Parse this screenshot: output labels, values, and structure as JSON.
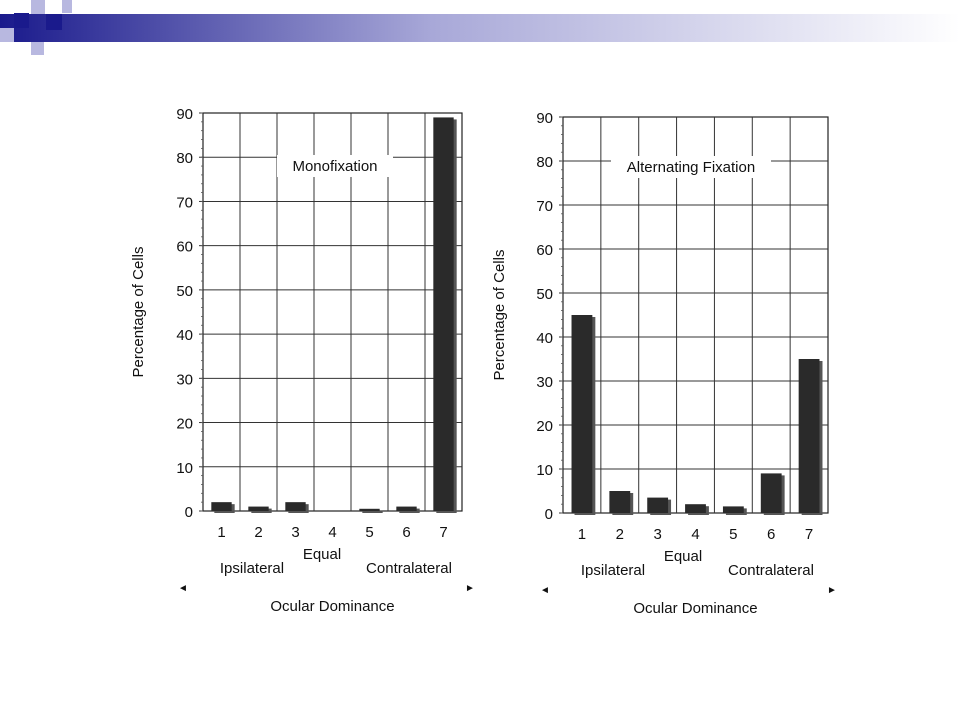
{
  "slide": {
    "header_colors": [
      "#1a1a8c",
      "#a8a8d8",
      "#ffffff"
    ]
  },
  "chart_data": [
    {
      "type": "bar",
      "title": "Monofixation",
      "ylabel": "Percentage of Cells",
      "xlabel": "Ocular Dominance",
      "categories": [
        "1",
        "2",
        "3",
        "4",
        "5",
        "6",
        "7"
      ],
      "values": [
        2,
        1,
        2,
        0,
        0.5,
        1,
        89
      ],
      "ylim": [
        0,
        90
      ],
      "yticks": [
        "0",
        "10",
        "20",
        "30",
        "40",
        "50",
        "60",
        "70",
        "80",
        "90"
      ],
      "group_labels": {
        "left": "Ipsilateral",
        "middle": "Equal",
        "right": "Contralateral"
      },
      "arrows": {
        "left": "◄",
        "right": "►"
      },
      "grid": true,
      "bar_color": "#2a2a2a"
    },
    {
      "type": "bar",
      "title": "Alternating  Fixation",
      "ylabel": "Percentage of Cells",
      "xlabel": "Ocular Dominance",
      "categories": [
        "1",
        "2",
        "3",
        "4",
        "5",
        "6",
        "7"
      ],
      "values": [
        45,
        5,
        3.5,
        2,
        1.5,
        9,
        35
      ],
      "ylim": [
        0,
        90
      ],
      "yticks": [
        "0",
        "10",
        "20",
        "30",
        "40",
        "50",
        "60",
        "70",
        "80",
        "90"
      ],
      "group_labels": {
        "left": "Ipsilateral",
        "middle": "Equal",
        "right": "Contralateral"
      },
      "arrows": {
        "left": "◄",
        "right": "►"
      },
      "grid": true,
      "bar_color": "#2a2a2a"
    }
  ]
}
